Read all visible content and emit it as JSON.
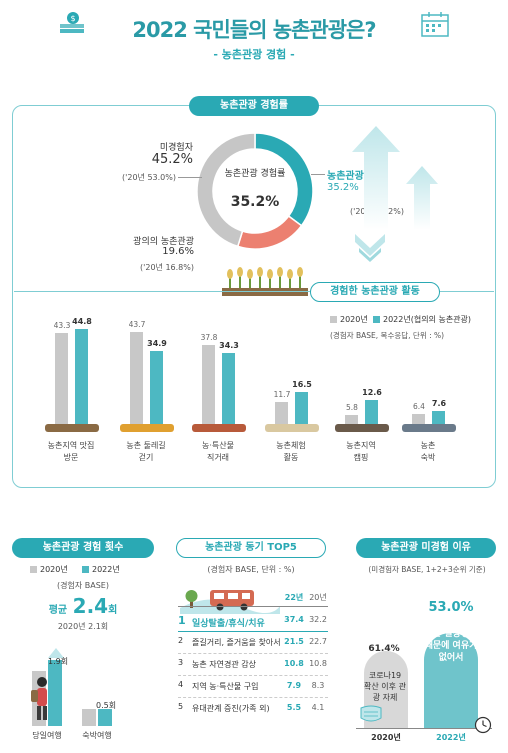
{
  "header": {
    "title": "2022 국민들의 농촌관광은?",
    "subtitle": "- 농촌관광 경험 -"
  },
  "section1": {
    "label": "농촌관광 경험률",
    "center_label": "농촌관광 경험률",
    "center_value": "35.2%",
    "non_exp_label": "미경험자",
    "non_exp_value": "45.2%",
    "non_exp_prev": "('20년 53.0%)",
    "exp_label": "농촌관광 경험",
    "exp_value": "35.2%",
    "exp_prev": "('20년 30.2%)",
    "broad_label": "광의의 농촌관광",
    "broad_value": "19.6%",
    "broad_prev": "('20년 16.8%)",
    "colors": {
      "exp": "#2aa9b4",
      "broad": "#ec8070",
      "non": "#c6c6c6"
    }
  },
  "section2": {
    "label": "경험한 농촌관광 활동",
    "legend_2020": "2020년",
    "legend_2022": "2022년(협의의 농촌관광)",
    "base_note": "(경험자 BASE, 복수응답, 단위 : %)"
  },
  "section3": {
    "label": "농촌관광 경험 횟수",
    "legend_2020": "2020년",
    "legend_2022": "2022년",
    "base_note": "(경험자 BASE)",
    "avg_label": "평균",
    "avg_value": "2.4",
    "avg_unit": "회",
    "prev_avg": "2020년 2.1회",
    "day_value_label": "1.9회",
    "overnight_value_label": "0.5회"
  },
  "section4": {
    "label": "농촌관광 동기 TOP5",
    "base_note": "(경험자 BASE, 단위 : %)",
    "col_22": "22년",
    "col_20": "20년",
    "rows": [
      {
        "rank": "1",
        "text": "일상탈출/휴식/치유",
        "v22": "37.4",
        "v20": "32.2"
      },
      {
        "rank": "2",
        "text": "즐길거리, 즐거움을 찾아서",
        "v22": "21.5",
        "v20": "22.7"
      },
      {
        "rank": "3",
        "text": "농촌 자연경관 감상",
        "v22": "10.8",
        "v20": "10.8"
      },
      {
        "rank": "4",
        "text": "지역 농·특산물 구입",
        "v22": "7.9",
        "v20": "8.3"
      },
      {
        "rank": "5",
        "text": "유대관계 증진(가족 외)",
        "v22": "5.5",
        "v20": "4.1"
      }
    ]
  },
  "section5": {
    "label": "농촌관광 미경험 이유",
    "base_note": "(미경험자 BASE, 1+2+3순위 기준)",
    "v2020": "61.4%",
    "v2022": "53.0%",
    "reason_2020": "코로나19 확산 이후 관광 자제",
    "reason_2022": "바쁜 일상생활 때문에 여유가 없어서",
    "year_2020": "2020년",
    "year_2022": "2022년"
  },
  "chart_data": [
    {
      "type": "pie",
      "title": "농촌관광 경험률",
      "categories": [
        "농촌관광 경험",
        "광의의 농촌관광",
        "미경험자"
      ],
      "values": [
        35.2,
        19.6,
        45.2
      ],
      "previous_2020": [
        30.2,
        16.8,
        53.0
      ]
    },
    {
      "type": "bar",
      "title": "경험한 농촌관광 활동",
      "categories": [
        "농촌지역 맛집 방문",
        "농촌 둘레길 걷기",
        "농·특산물 직거래",
        "농촌체험 활동",
        "농촌지역 캠핑",
        "농촌 숙박"
      ],
      "series": [
        {
          "name": "2020년",
          "values": [
            43.3,
            43.7,
            37.8,
            11.7,
            5.8,
            6.4
          ]
        },
        {
          "name": "2022년(협의의 농촌관광)",
          "values": [
            44.8,
            34.9,
            34.3,
            16.5,
            12.6,
            7.6
          ]
        }
      ],
      "ylim": [
        0,
        50
      ]
    },
    {
      "type": "bar",
      "title": "농촌관광 경험 횟수",
      "categories": [
        "당일여행",
        "숙박여행"
      ],
      "series": [
        {
          "name": "2020년",
          "values": [
            1.6,
            0.5
          ]
        },
        {
          "name": "2022년",
          "values": [
            1.9,
            0.5
          ]
        }
      ],
      "ylim": [
        0,
        2.2
      ]
    },
    {
      "type": "table",
      "title": "농촌관광 동기 TOP5",
      "columns": [
        "22년",
        "20년"
      ],
      "categories": [
        "일상탈출/휴식/치유",
        "즐길거리, 즐거움을 찾아서",
        "농촌 자연경관 감상",
        "지역 농·특산물 구입",
        "유대관계 증진(가족 외)"
      ],
      "series": [
        {
          "name": "22년",
          "values": [
            37.4,
            21.5,
            10.8,
            7.9,
            5.5
          ]
        },
        {
          "name": "20년",
          "values": [
            32.2,
            22.7,
            10.8,
            8.3,
            4.1
          ]
        }
      ]
    },
    {
      "type": "bar",
      "title": "농촌관광 미경험 이유",
      "categories": [
        "2020년",
        "2022년"
      ],
      "values": [
        61.4,
        53.0
      ],
      "ylim": [
        0,
        70
      ]
    }
  ]
}
